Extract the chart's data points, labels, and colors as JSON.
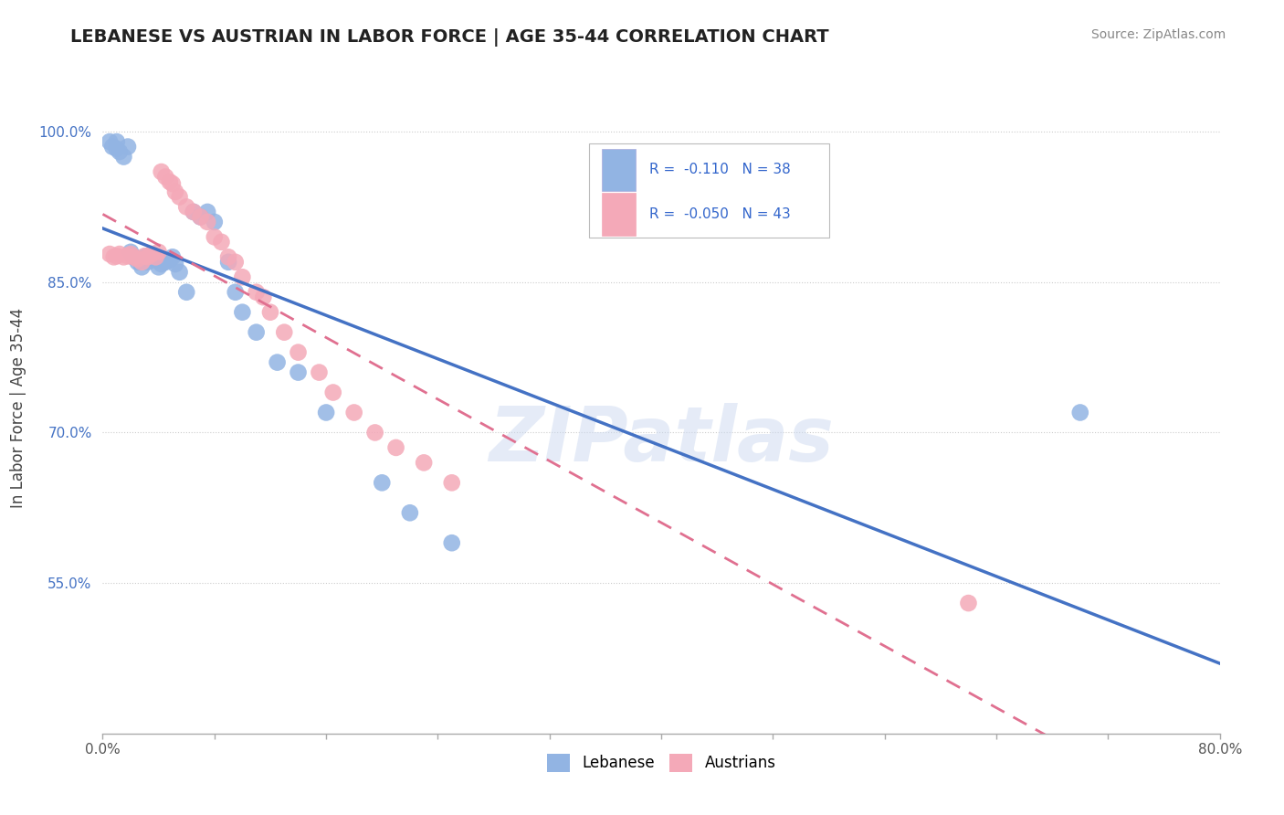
{
  "title": "LEBANESE VS AUSTRIAN IN LABOR FORCE | AGE 35-44 CORRELATION CHART",
  "source": "Source: ZipAtlas.com",
  "ylabel": "In Labor Force | Age 35-44",
  "xlim": [
    0.0,
    0.8
  ],
  "ylim": [
    0.4,
    1.05
  ],
  "xtick_positions": [
    0.0,
    0.08,
    0.16,
    0.24,
    0.32,
    0.4,
    0.48,
    0.56,
    0.64,
    0.72,
    0.8
  ],
  "xticklabels_show": {
    "0.0": "0.0%",
    "0.80": "80.0%"
  },
  "ytick_positions": [
    0.55,
    0.7,
    0.85,
    1.0
  ],
  "yticklabels": [
    "55.0%",
    "70.0%",
    "85.0%",
    "100.0%"
  ],
  "r_lebanese": -0.11,
  "n_lebanese": 38,
  "r_austrian": -0.05,
  "n_austrian": 43,
  "lebanese_color": "#92b4e3",
  "austrian_color": "#f4a9b8",
  "lebanese_line_color": "#4472c4",
  "austrian_line_color": "#e07090",
  "title_color": "#222222",
  "source_color": "#888888",
  "grid_color": "#cccccc",
  "lebanese_x": [
    0.005,
    0.007,
    0.01,
    0.01,
    0.012,
    0.015,
    0.018,
    0.02,
    0.022,
    0.025,
    0.028,
    0.03,
    0.032,
    0.035,
    0.038,
    0.04,
    0.042,
    0.045,
    0.048,
    0.05,
    0.052,
    0.055,
    0.06,
    0.065,
    0.07,
    0.075,
    0.08,
    0.09,
    0.095,
    0.1,
    0.11,
    0.125,
    0.14,
    0.16,
    0.2,
    0.22,
    0.25,
    0.7
  ],
  "lebanese_y": [
    0.99,
    0.985,
    0.99,
    0.983,
    0.98,
    0.975,
    0.985,
    0.88,
    0.875,
    0.87,
    0.865,
    0.875,
    0.87,
    0.875,
    0.872,
    0.865,
    0.868,
    0.87,
    0.872,
    0.875,
    0.868,
    0.86,
    0.84,
    0.92,
    0.915,
    0.92,
    0.91,
    0.87,
    0.84,
    0.82,
    0.8,
    0.77,
    0.76,
    0.72,
    0.65,
    0.62,
    0.59,
    0.72
  ],
  "austrian_x": [
    0.005,
    0.008,
    0.01,
    0.012,
    0.015,
    0.018,
    0.02,
    0.022,
    0.025,
    0.028,
    0.03,
    0.032,
    0.035,
    0.038,
    0.04,
    0.042,
    0.045,
    0.048,
    0.05,
    0.052,
    0.055,
    0.06,
    0.065,
    0.07,
    0.075,
    0.08,
    0.085,
    0.09,
    0.095,
    0.1,
    0.11,
    0.115,
    0.12,
    0.13,
    0.14,
    0.155,
    0.165,
    0.18,
    0.195,
    0.21,
    0.23,
    0.25,
    0.62
  ],
  "austrian_y": [
    0.878,
    0.875,
    0.876,
    0.878,
    0.875,
    0.876,
    0.878,
    0.875,
    0.873,
    0.87,
    0.876,
    0.875,
    0.878,
    0.875,
    0.88,
    0.96,
    0.955,
    0.95,
    0.948,
    0.94,
    0.935,
    0.925,
    0.92,
    0.915,
    0.91,
    0.895,
    0.89,
    0.875,
    0.87,
    0.855,
    0.84,
    0.835,
    0.82,
    0.8,
    0.78,
    0.76,
    0.74,
    0.72,
    0.7,
    0.685,
    0.67,
    0.65,
    0.53
  ]
}
